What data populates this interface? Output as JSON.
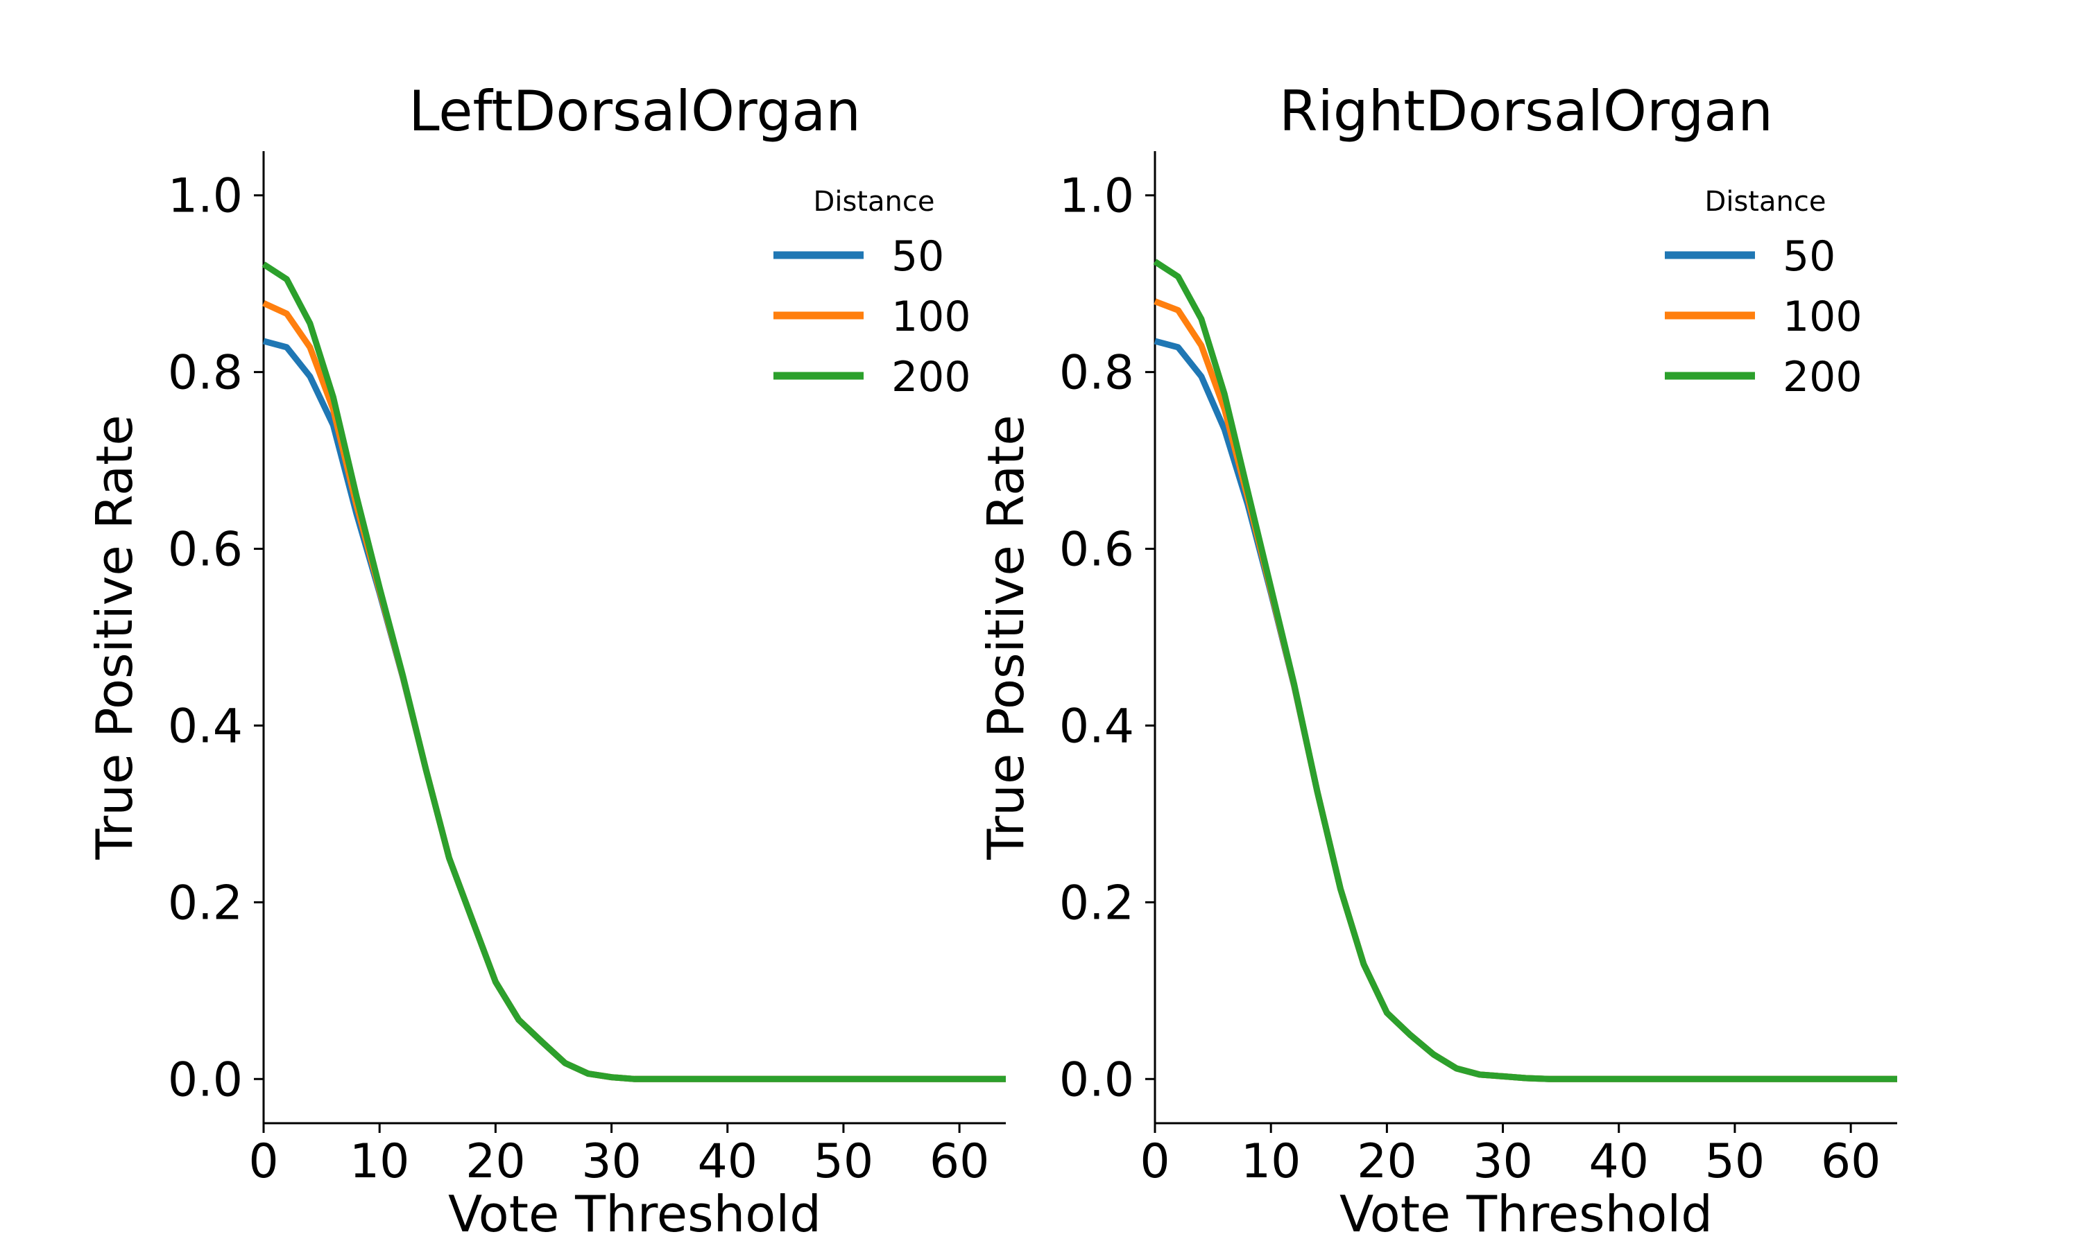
{
  "chart_data": [
    {
      "type": "line",
      "title": "LeftDorsalOrgan",
      "xlabel": "Vote Threshold",
      "ylabel": "True Positive Rate",
      "xlim": [
        0,
        64
      ],
      "ylim": [
        -0.05,
        1.05
      ],
      "xticks": [
        0,
        10,
        20,
        30,
        40,
        50,
        60
      ],
      "yticks": [
        0.0,
        0.2,
        0.4,
        0.6,
        0.8,
        1.0
      ],
      "xtick_labels": [
        "0",
        "10",
        "20",
        "30",
        "40",
        "50",
        "60"
      ],
      "ytick_labels": [
        "0.0",
        "0.2",
        "0.4",
        "0.6",
        "0.8",
        "1.0"
      ],
      "grid": false,
      "legend": {
        "title": "Distance",
        "position": "top-right"
      },
      "x": [
        0,
        2,
        4,
        6,
        8,
        10,
        12,
        14,
        16,
        18,
        20,
        22,
        24,
        26,
        28,
        30,
        32,
        34,
        36,
        38,
        40,
        42,
        44,
        46,
        48,
        50,
        52,
        54,
        56,
        58,
        60,
        62,
        64
      ],
      "series": [
        {
          "name": "50",
          "color": "#1f77b4",
          "values": [
            0.835,
            0.828,
            0.795,
            0.74,
            0.64,
            0.55,
            0.455,
            0.35,
            0.25,
            0.18,
            0.11,
            0.067,
            0.042,
            0.018,
            0.006,
            0.002,
            0.0,
            0.0,
            0.0,
            0.0,
            0.0,
            0.0,
            0.0,
            0.0,
            0.0,
            0.0,
            0.0,
            0.0,
            0.0,
            0.0,
            0.0,
            0.0,
            0.0
          ]
        },
        {
          "name": "100",
          "color": "#ff7f0e",
          "values": [
            0.878,
            0.866,
            0.828,
            0.758,
            0.65,
            0.553,
            0.456,
            0.35,
            0.25,
            0.18,
            0.11,
            0.067,
            0.042,
            0.018,
            0.006,
            0.002,
            0.0,
            0.0,
            0.0,
            0.0,
            0.0,
            0.0,
            0.0,
            0.0,
            0.0,
            0.0,
            0.0,
            0.0,
            0.0,
            0.0,
            0.0,
            0.0,
            0.0
          ]
        },
        {
          "name": "200",
          "color": "#2ca02c",
          "values": [
            0.922,
            0.905,
            0.855,
            0.772,
            0.66,
            0.556,
            0.457,
            0.35,
            0.25,
            0.18,
            0.11,
            0.067,
            0.042,
            0.018,
            0.006,
            0.002,
            0.0,
            0.0,
            0.0,
            0.0,
            0.0,
            0.0,
            0.0,
            0.0,
            0.0,
            0.0,
            0.0,
            0.0,
            0.0,
            0.0,
            0.0,
            0.0,
            0.0
          ]
        }
      ]
    },
    {
      "type": "line",
      "title": "RightDorsalOrgan",
      "xlabel": "Vote Threshold",
      "ylabel": "True Positive Rate",
      "xlim": [
        0,
        64
      ],
      "ylim": [
        -0.05,
        1.05
      ],
      "xticks": [
        0,
        10,
        20,
        30,
        40,
        50,
        60
      ],
      "yticks": [
        0.0,
        0.2,
        0.4,
        0.6,
        0.8,
        1.0
      ],
      "xtick_labels": [
        "0",
        "10",
        "20",
        "30",
        "40",
        "50",
        "60"
      ],
      "ytick_labels": [
        "0.0",
        "0.2",
        "0.4",
        "0.6",
        "0.8",
        "1.0"
      ],
      "grid": false,
      "legend": {
        "title": "Distance",
        "position": "top-right"
      },
      "x": [
        0,
        2,
        4,
        6,
        8,
        10,
        12,
        14,
        16,
        18,
        20,
        22,
        24,
        26,
        28,
        30,
        32,
        34,
        36,
        38,
        40,
        42,
        44,
        46,
        48,
        50,
        52,
        54,
        56,
        58,
        60,
        62,
        64
      ],
      "series": [
        {
          "name": "50",
          "color": "#1f77b4",
          "values": [
            0.835,
            0.828,
            0.795,
            0.735,
            0.65,
            0.55,
            0.445,
            0.325,
            0.215,
            0.13,
            0.075,
            0.05,
            0.028,
            0.012,
            0.005,
            0.003,
            0.001,
            0.0,
            0.0,
            0.0,
            0.0,
            0.0,
            0.0,
            0.0,
            0.0,
            0.0,
            0.0,
            0.0,
            0.0,
            0.0,
            0.0,
            0.0,
            0.0
          ]
        },
        {
          "name": "100",
          "color": "#ff7f0e",
          "values": [
            0.88,
            0.87,
            0.83,
            0.758,
            0.658,
            0.553,
            0.446,
            0.325,
            0.215,
            0.13,
            0.075,
            0.05,
            0.028,
            0.012,
            0.005,
            0.003,
            0.001,
            0.0,
            0.0,
            0.0,
            0.0,
            0.0,
            0.0,
            0.0,
            0.0,
            0.0,
            0.0,
            0.0,
            0.0,
            0.0,
            0.0,
            0.0,
            0.0
          ]
        },
        {
          "name": "200",
          "color": "#2ca02c",
          "values": [
            0.925,
            0.908,
            0.86,
            0.775,
            0.665,
            0.556,
            0.447,
            0.325,
            0.215,
            0.13,
            0.075,
            0.05,
            0.028,
            0.012,
            0.005,
            0.003,
            0.001,
            0.0,
            0.0,
            0.0,
            0.0,
            0.0,
            0.0,
            0.0,
            0.0,
            0.0,
            0.0,
            0.0,
            0.0,
            0.0,
            0.0,
            0.0,
            0.0
          ]
        }
      ]
    }
  ]
}
